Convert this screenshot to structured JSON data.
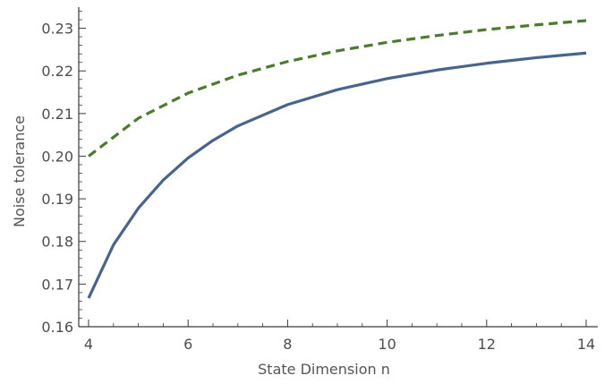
{
  "chart_data": {
    "type": "line",
    "title": "",
    "xlabel": "State Dimension n",
    "ylabel": "Noise tolerance",
    "xlim": [
      4,
      14
    ],
    "ylim": [
      0.16,
      0.235
    ],
    "x_ticks": [
      4,
      6,
      8,
      10,
      12,
      14
    ],
    "x_tick_labels": [
      "4",
      "6",
      "8",
      "10",
      "12",
      "14"
    ],
    "y_ticks": [
      0.16,
      0.17,
      0.18,
      0.19,
      0.2,
      0.21,
      0.22,
      0.23
    ],
    "y_tick_labels": [
      "0.16",
      "0.17",
      "0.18",
      "0.19",
      "0.20",
      "0.21",
      "0.22",
      "0.23"
    ],
    "grid": false,
    "legend": "none",
    "series": [
      {
        "style": "dashed",
        "color": "#4a7c2e",
        "x": [
          4,
          5,
          6,
          7,
          8,
          9,
          10,
          11,
          12,
          13,
          14
        ],
        "y": [
          0.2,
          0.2089,
          0.2148,
          0.219,
          0.2222,
          0.2247,
          0.2267,
          0.2283,
          0.2297,
          0.2308,
          0.2318
        ]
      },
      {
        "style": "solid",
        "color": "#46648c",
        "x": [
          4,
          4.5,
          5,
          5.5,
          6,
          6.5,
          7,
          8,
          9,
          10,
          11,
          12,
          13,
          14
        ],
        "y": [
          0.1667,
          0.1792,
          0.1878,
          0.1944,
          0.1996,
          0.2037,
          0.2071,
          0.2121,
          0.2156,
          0.2182,
          0.2202,
          0.2218,
          0.2231,
          0.2242
        ]
      }
    ]
  }
}
